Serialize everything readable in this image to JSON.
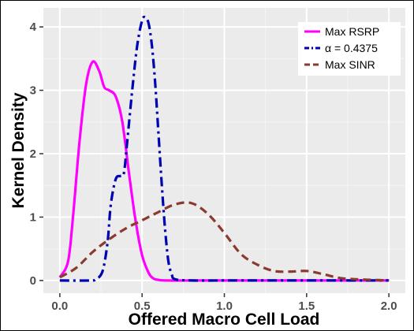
{
  "chart_data": {
    "type": "line",
    "xlabel": "Offered Macro Cell Load",
    "ylabel": "Kernel Density",
    "xlim": [
      -0.1,
      2.1
    ],
    "ylim": [
      -0.2,
      4.3
    ],
    "x_ticks": [
      0.0,
      0.5,
      1.0,
      1.5,
      2.0
    ],
    "x_tick_labels": [
      "0.0",
      "0.5",
      "1.0",
      "1.5",
      "2.0"
    ],
    "y_ticks": [
      0,
      1,
      2,
      3,
      4
    ],
    "y_tick_labels": [
      "0",
      "1",
      "2",
      "3",
      "4"
    ],
    "grid": true,
    "background": "#ebebeb",
    "legend_position": "top-right",
    "series": [
      {
        "name": "Max RSRP",
        "color": "#ff00ff",
        "dash": "solid",
        "x": [
          0.0,
          0.05,
          0.08,
          0.12,
          0.16,
          0.2,
          0.24,
          0.27,
          0.3,
          0.34,
          0.38,
          0.42,
          0.46,
          0.5,
          0.54,
          0.57,
          0.6,
          0.65,
          0.8,
          1.0,
          1.5,
          2.0
        ],
        "y": [
          0.05,
          0.3,
          1.0,
          2.2,
          3.1,
          3.45,
          3.3,
          3.05,
          3.0,
          2.9,
          2.5,
          1.7,
          0.95,
          0.4,
          0.12,
          0.03,
          0.01,
          0.0,
          0.0,
          0.0,
          0.0,
          0.0
        ]
      },
      {
        "name": "α = 0.4375",
        "color": "#0000b3",
        "dash": "dashdot",
        "x": [
          0.0,
          0.18,
          0.22,
          0.26,
          0.29,
          0.31,
          0.34,
          0.37,
          0.39,
          0.41,
          0.44,
          0.47,
          0.5,
          0.52,
          0.54,
          0.56,
          0.58,
          0.6,
          0.62,
          0.64,
          0.66,
          0.68,
          0.7,
          0.8,
          1.0,
          1.5,
          2.0
        ],
        "y": [
          0.0,
          0.0,
          0.02,
          0.15,
          0.6,
          1.2,
          1.6,
          1.65,
          1.7,
          2.2,
          3.0,
          3.7,
          4.1,
          4.15,
          4.05,
          3.7,
          3.1,
          2.3,
          1.5,
          0.8,
          0.3,
          0.1,
          0.02,
          0.0,
          0.0,
          0.0,
          0.0
        ]
      },
      {
        "name": "Max SINR",
        "color": "#8b3a2f",
        "dash": "dashed",
        "x": [
          0.0,
          0.1,
          0.2,
          0.3,
          0.4,
          0.5,
          0.6,
          0.7,
          0.8,
          0.9,
          1.0,
          1.1,
          1.2,
          1.3,
          1.4,
          1.5,
          1.6,
          1.7,
          1.8,
          1.9,
          2.0
        ],
        "y": [
          0.05,
          0.2,
          0.45,
          0.65,
          0.82,
          0.95,
          1.08,
          1.2,
          1.22,
          1.05,
          0.75,
          0.42,
          0.25,
          0.15,
          0.14,
          0.15,
          0.1,
          0.04,
          0.02,
          0.01,
          0.0
        ]
      }
    ]
  }
}
